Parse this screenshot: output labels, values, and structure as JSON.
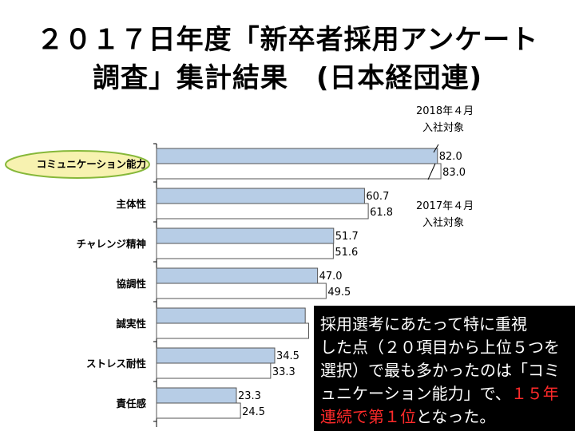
{
  "title_line1": "２０１７日年度「新卒者採用アンケート",
  "title_line2": "調査」集計結果　(日本経団連)",
  "legend_2018": [
    "2018年４月",
    "入社対象"
  ],
  "legend_2017": [
    "2017年４月",
    "入社対象"
  ],
  "note": {
    "line1": "採用選考にあたって特に重視",
    "line2": "した点（２０項目から上位５つを",
    "line3": "選択）で最も多かったのは「コミ",
    "line4_a": "ュニケーション能力」で、",
    "line4_red": "１５年",
    "line5_red": "連続で第１位",
    "line5_b": "となった。"
  },
  "colors": {
    "bar_2018": "#b7cde6",
    "bar_2017": "#ffffff",
    "highlight_fill": "#f7f2b0",
    "highlight_stroke": "#86b83a",
    "note_red": "#ff2a2a"
  },
  "chart_data": {
    "type": "bar",
    "orientation": "horizontal",
    "categories": [
      "コミュニケーション能力",
      "主体性",
      "チャレンジ精神",
      "協調性",
      "誠実性",
      "ストレス耐性",
      "責任感"
    ],
    "value_labels": [
      [
        "82.0",
        "83.0"
      ],
      [
        "60.7",
        "61.8"
      ],
      [
        "51.7",
        "51.6"
      ],
      [
        "47.0",
        "49.5"
      ],
      [
        "",
        ""
      ],
      [
        "34.5",
        "33.3"
      ],
      [
        "23.3",
        "24.5"
      ]
    ],
    "series": [
      {
        "name": "2018年４月入社対象",
        "values": [
          82.0,
          60.7,
          51.7,
          47.0,
          43.4,
          34.5,
          23.3
        ]
      },
      {
        "name": "2017年４月入社対象",
        "values": [
          83.0,
          61.8,
          51.6,
          49.5,
          44.4,
          33.3,
          24.5
        ]
      }
    ],
    "xlim": [
      0,
      100
    ]
  }
}
